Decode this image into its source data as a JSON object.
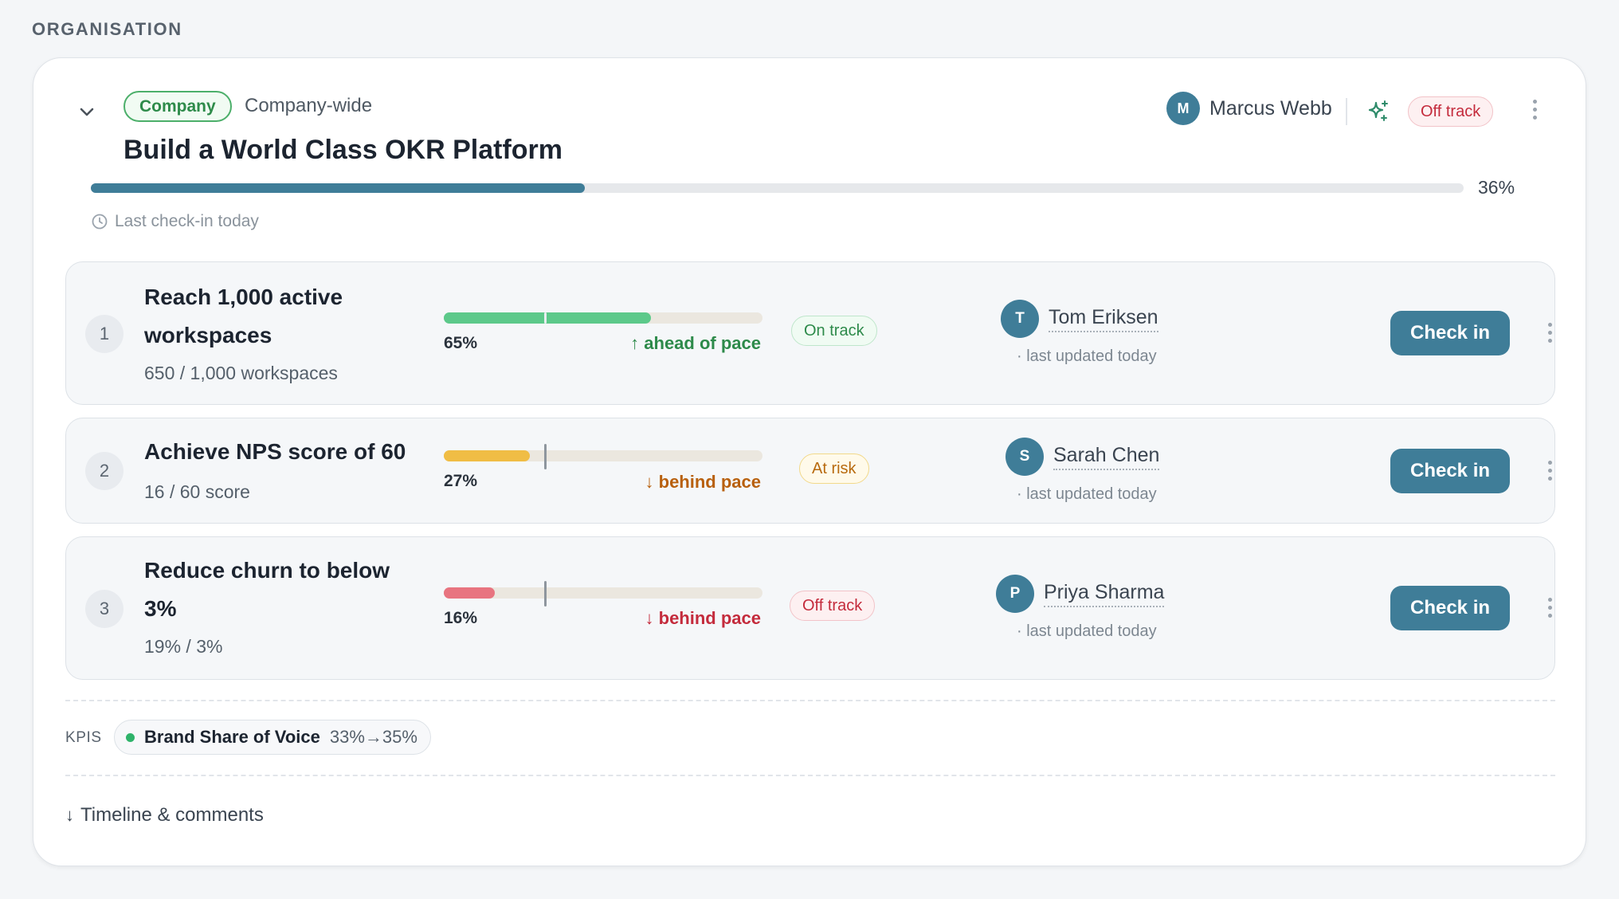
{
  "section": {
    "label": "ORGANISATION"
  },
  "objective": {
    "level_tag": "Company",
    "scope": "Company-wide",
    "title": "Build a World Class OKR Platform",
    "owner": {
      "initial": "M",
      "name": "Marcus Webb"
    },
    "status": "Off track",
    "progress": 36,
    "progress_label": "36%",
    "last_checkin": "Last check-in today",
    "icons": [
      "chevron-down-icon",
      "sparkle-icon",
      "more-vertical-icon",
      "clock-icon"
    ]
  },
  "key_results": [
    {
      "number": "1",
      "title": "Reach 1,000 active workspaces",
      "subtitle": "650 / 1,000 workspaces",
      "progress": 65,
      "progress_label": "65%",
      "pace": "↑ ahead of pace",
      "status": "On track",
      "owner_initial": "T",
      "owner_name": "Tom Eriksen",
      "updated": "· last updated today",
      "button": "Check in"
    },
    {
      "number": "2",
      "title": "Achieve NPS score of 60",
      "subtitle": "16 / 60 score",
      "progress": 27,
      "progress_label": "27%",
      "pace": "↓ behind pace",
      "status": "At risk",
      "owner_initial": "S",
      "owner_name": "Sarah Chen",
      "updated": "· last updated today",
      "button": "Check in"
    },
    {
      "number": "3",
      "title": "Reduce churn to below 3%",
      "subtitle": "19% / 3%",
      "progress": 16,
      "progress_label": "16%",
      "pace": "↓ behind pace",
      "status": "Off track",
      "owner_initial": "P",
      "owner_name": "Priya Sharma",
      "updated": "· last updated today",
      "button": "Check in"
    }
  ],
  "kpis": {
    "label": "KPIS",
    "items": [
      {
        "name": "Brand Share of Voice",
        "value": "33%→35%"
      }
    ]
  },
  "timeline": {
    "arrow": "↓",
    "label": "Timeline & comments"
  },
  "colors": {
    "accent": "#3f7d98",
    "on_track": "#5cc98a",
    "at_risk": "#f0bd45",
    "off_track": "#e87480"
  }
}
